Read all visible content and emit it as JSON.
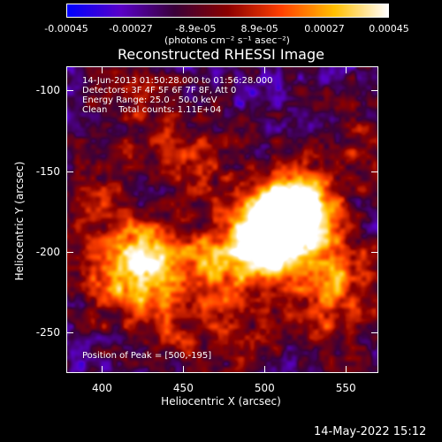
{
  "colorbar": {
    "ticks": [
      "-0.00045",
      "-0.00027",
      "-8.9e-05",
      "8.9e-05",
      "0.00027",
      "0.00045"
    ],
    "unit_label": "(photons cm⁻² s⁻¹ asec⁻²)",
    "colors": [
      "#0000ff",
      "#5a00c8",
      "#3a003a",
      "#8b0000",
      "#ff4000",
      "#ffc000",
      "#ffffff"
    ]
  },
  "title": "Reconstructed RHESSI Image",
  "info": {
    "line1": "14-Jun-2013 01:50:28.000 to 01:56:28.000",
    "line2": "Detectors: 3F 4F 5F 6F 7F 8F, Att 0",
    "line3": "Energy Range: 25.0 - 50.0 keV",
    "line4": "Clean    Total counts: 1.11E+04",
    "peak": "Position of Peak = [500,-195]"
  },
  "axes": {
    "xlabel": "Heliocentric X (arcsec)",
    "ylabel": "Heliocentric Y (arcsec)",
    "xticks": [
      "400",
      "450",
      "500",
      "550"
    ],
    "yticks": [
      "-100",
      "-150",
      "-200",
      "-250"
    ]
  },
  "timestamp": "14-May-2022 15:12",
  "chart_data": {
    "type": "heatmap",
    "title": "Reconstructed RHESSI Image",
    "xlabel": "Heliocentric X (arcsec)",
    "ylabel": "Heliocentric Y (arcsec)",
    "xlim": [
      378,
      570
    ],
    "ylim": [
      -275,
      -85
    ],
    "x_ticks": [
      400,
      450,
      500,
      550
    ],
    "y_ticks": [
      -100,
      -150,
      -200,
      -250
    ],
    "colorbar_range": [
      -0.00045,
      0.00045
    ],
    "colorbar_ticks": [
      -0.00045,
      -0.00027,
      -8.9e-05,
      8.9e-05,
      0.00027,
      0.00045
    ],
    "colorbar_label": "(photons cm⁻² s⁻¹ asec⁻²)",
    "peak_position": [
      500,
      -195
    ],
    "sources": [
      {
        "x": 500,
        "y": -195,
        "intensity": 1.0
      },
      {
        "x": 510,
        "y": -180,
        "intensity": 0.9
      },
      {
        "x": 525,
        "y": -170,
        "intensity": 0.75
      },
      {
        "x": 430,
        "y": -205,
        "intensity": 0.8
      },
      {
        "x": 410,
        "y": -215,
        "intensity": 0.6
      },
      {
        "x": 470,
        "y": -210,
        "intensity": 0.55
      },
      {
        "x": 455,
        "y": -145,
        "intensity": 0.5
      },
      {
        "x": 545,
        "y": -215,
        "intensity": 0.6
      },
      {
        "x": 390,
        "y": -170,
        "intensity": 0.4
      },
      {
        "x": 420,
        "y": -110,
        "intensity": 0.35
      },
      {
        "x": 560,
        "y": -130,
        "intensity": 0.35
      },
      {
        "x": 480,
        "y": -255,
        "intensity": 0.35
      },
      {
        "x": 440,
        "y": -245,
        "intensity": 0.3
      },
      {
        "x": 535,
        "y": -245,
        "intensity": 0.3
      }
    ]
  }
}
